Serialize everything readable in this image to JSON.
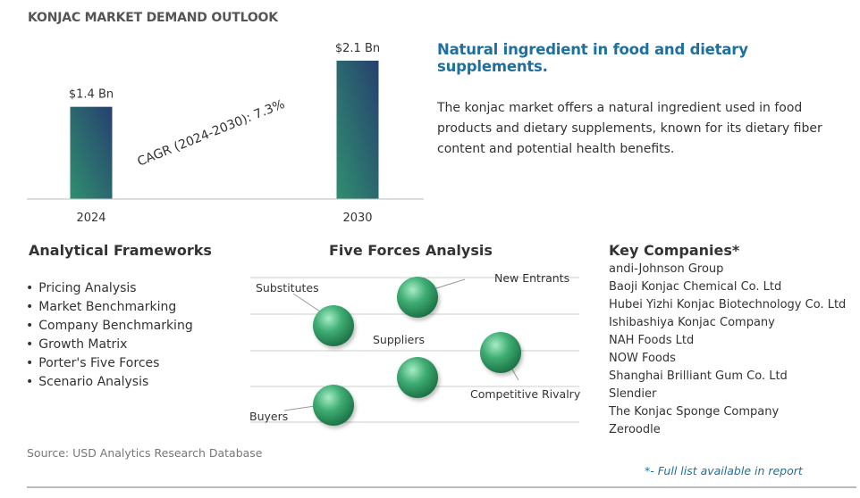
{
  "page_title": "KONJAC MARKET DEMAND OUTLOOK",
  "chart_data": {
    "type": "bar",
    "categories": [
      "2024",
      "2030"
    ],
    "values": [
      1.4,
      2.1
    ],
    "data_labels": [
      "$1.4 Bn",
      "$2.1 Bn"
    ],
    "annotation": "CAGR (2024-2030):  7.3%",
    "title": "",
    "xlabel": "",
    "ylabel": "",
    "ylim": [
      0,
      2.1
    ],
    "grid": false,
    "bar_gradient": [
      "#2f8f6f",
      "#27406f"
    ]
  },
  "headline": "Natural ingredient in food and dietary supplements.",
  "description": "The konjac market offers a natural ingredient used in food products and dietary supplements, known for its dietary fiber content and potential health benefits.",
  "frameworks": {
    "title": "Analytical Frameworks",
    "items": [
      "Pricing Analysis",
      "Market Benchmarking",
      "Company Benchmarking",
      "Growth Matrix",
      "Porter's Five Forces",
      "Scenario Analysis"
    ]
  },
  "five_forces": {
    "title": "Five Forces Analysis",
    "substitutes": "Substitutes",
    "new_entrants": "New Entrants",
    "suppliers": "Suppliers",
    "competitive_rivalry": "Competitive Rivalry",
    "buyers": "Buyers"
  },
  "companies": {
    "title": "Key Companies*",
    "items": [
      "andi-Johnson Group",
      "Baoji Konjac Chemical Co. Ltd",
      "Hubei Yizhi Konjac Biotechnology Co. Ltd",
      "Ishibashiya Konjac Company",
      "NAH Foods Ltd",
      "NOW Foods",
      "Shanghai Brilliant Gum Co. Ltd",
      "Slendier",
      "The Konjac Sponge Company",
      "Zeroodle"
    ]
  },
  "source": "Source: USD Analytics Research Database",
  "footnote": "*- Full list available in report",
  "colors": {
    "headline": "#1f6f9f",
    "ball": "#2e8b57"
  }
}
